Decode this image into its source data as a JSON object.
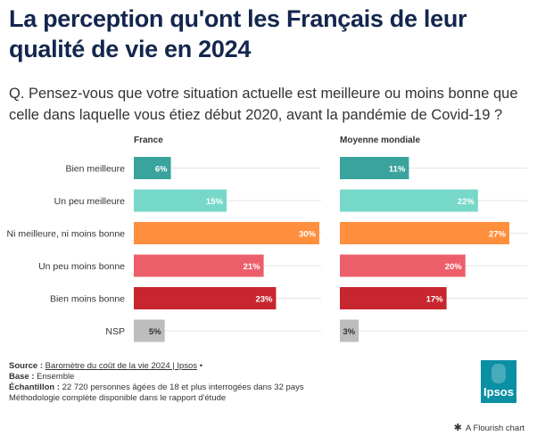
{
  "title": "La perception qu'ont les Français de leur qualité de vie en 2024",
  "subtitle": "Q. Pensez-vous que votre situation actuelle est meilleure ou moins bonne que celle dans laquelle vous étiez début 2020, avant la pandémie de Covid-19 ?",
  "chart_data": [
    {
      "type": "bar",
      "orientation": "horizontal",
      "title": "France",
      "categories": [
        "Bien meilleure",
        "Un peu meilleure",
        "Ni meilleure, ni moins bonne",
        "Un peu moins bonne",
        "Bien moins bonne",
        "NSP"
      ],
      "values": [
        6,
        15,
        30,
        21,
        23,
        5
      ],
      "value_labels": [
        "6%",
        "15%",
        "30%",
        "21%",
        "23%",
        "5%"
      ],
      "colors": [
        "#3aa39d",
        "#76d8c8",
        "#ff8f3d",
        "#ec5f6a",
        "#c8262e",
        "#bdbdbd"
      ],
      "xlim": [
        0,
        30
      ],
      "grid": true
    },
    {
      "type": "bar",
      "orientation": "horizontal",
      "title": "Moyenne mondiale",
      "categories": [
        "Bien meilleure",
        "Un peu meilleure",
        "Ni meilleure, ni moins bonne",
        "Un peu moins bonne",
        "Bien moins bonne",
        "NSP"
      ],
      "values": [
        11,
        22,
        27,
        20,
        17,
        3
      ],
      "value_labels": [
        "11%",
        "22%",
        "27%",
        "20%",
        "17%",
        "3%"
      ],
      "colors": [
        "#3aa39d",
        "#76d8c8",
        "#ff8f3d",
        "#ec5f6a",
        "#c8262e",
        "#bdbdbd"
      ],
      "xlim": [
        0,
        27
      ],
      "grid": true
    }
  ],
  "footer": {
    "source_label": "Source :",
    "source_text": "Baromètre du coût de la vie 2024 | Ipsos",
    "source_bullet": "•",
    "base_label": "Base :",
    "base_text": "Ensemble",
    "sample_label": "Échantillon :",
    "sample_text": "22 720 personnes âgées de 18 et plus interrogées dans 32 pays",
    "method_text": "Méthodologie complète disponible dans le rapport d'étude"
  },
  "logo_text": "Ipsos",
  "logo_color": "#0b8fa3",
  "flourish_label": "A Flourish chart"
}
